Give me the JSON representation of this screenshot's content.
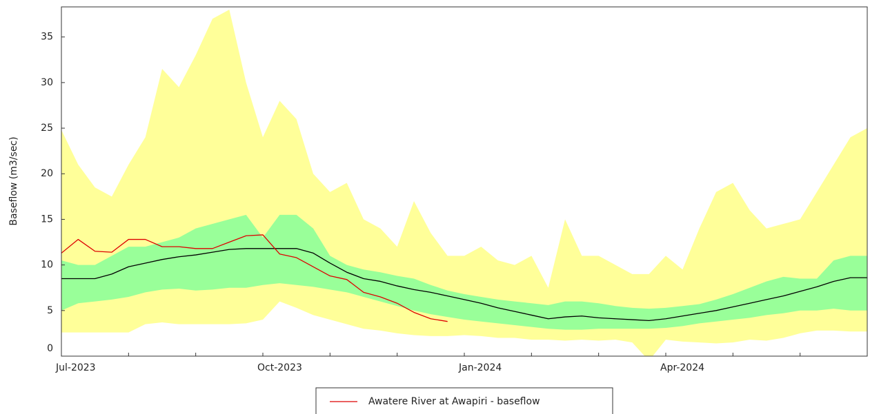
{
  "chart_data": {
    "type": "line",
    "y_label": "Baseflow (m3/sec)",
    "categories": [
      "Jul-2023",
      null,
      null,
      null,
      null,
      null,
      null,
      null,
      null,
      null,
      null,
      null,
      "Oct-2023",
      null,
      null,
      null,
      null,
      null,
      null,
      null,
      null,
      null,
      null,
      null,
      "Jan-2024",
      null,
      null,
      null,
      null,
      null,
      null,
      null,
      null,
      null,
      null,
      null,
      "Apr-2024",
      null,
      null,
      null,
      null,
      null,
      null,
      null,
      null,
      null,
      null,
      null,
      null
    ],
    "ylim": [
      0,
      38.3
    ],
    "yticks": [
      0,
      5,
      10,
      15,
      20,
      25,
      30,
      35
    ],
    "bands": [
      {
        "color": "#ffff99",
        "upper": [
          24.8,
          21,
          18.5,
          17.5,
          21,
          24,
          31.5,
          29.5,
          33,
          37,
          38,
          30,
          24,
          28,
          26,
          20,
          18,
          19,
          15,
          14,
          12,
          17,
          13.5,
          11,
          11,
          12,
          10.5,
          10,
          11,
          7.5,
          15,
          11,
          11,
          10,
          9,
          9,
          11,
          9.5,
          14,
          18,
          19,
          16,
          14,
          14.5,
          15,
          18,
          21,
          24,
          25
        ],
        "lower": [
          2.6,
          2.6,
          2.6,
          2.6,
          2.6,
          3.5,
          3.7,
          3.5,
          3.5,
          3.5,
          3.5,
          3.6,
          4,
          6,
          5.3,
          4.5,
          4,
          3.5,
          3,
          2.8,
          2.5,
          2.3,
          2.2,
          2.2,
          2.3,
          2.2,
          2,
          2,
          1.8,
          1.8,
          1.7,
          1.8,
          1.7,
          1.8,
          1.5,
          -0.5,
          1.8,
          1.6,
          1.5,
          1.4,
          1.5,
          1.8,
          1.7,
          2,
          2.5,
          2.8,
          2.8,
          2.7,
          2.7
        ]
      },
      {
        "color": "#99ff99",
        "upper": [
          10.5,
          10,
          10,
          11,
          12,
          12,
          12.5,
          13,
          14,
          14.5,
          15,
          15.5,
          13,
          15.5,
          15.5,
          14,
          11,
          10,
          9.5,
          9.2,
          8.8,
          8.5,
          7.8,
          7.2,
          6.8,
          6.5,
          6.2,
          6,
          5.8,
          5.6,
          6,
          6,
          5.8,
          5.5,
          5.3,
          5.2,
          5.3,
          5.5,
          5.7,
          6.2,
          6.8,
          7.5,
          8.2,
          8.7,
          8.5,
          8.5,
          10.5,
          11,
          11
        ],
        "lower": [
          5,
          5.8,
          6,
          6.2,
          6.5,
          7,
          7.3,
          7.4,
          7.2,
          7.3,
          7.5,
          7.5,
          7.8,
          8,
          7.8,
          7.6,
          7.3,
          7,
          6.5,
          6,
          5.5,
          5,
          4.6,
          4.3,
          4,
          3.8,
          3.6,
          3.4,
          3.2,
          3,
          2.9,
          2.9,
          3,
          3,
          3,
          3,
          3.1,
          3.3,
          3.6,
          3.8,
          4,
          4.2,
          4.5,
          4.7,
          5,
          5,
          5.2,
          5,
          5
        ]
      }
    ],
    "series": [
      {
        "color": "#000000",
        "values": [
          8.5,
          8.5,
          8.5,
          9,
          9.8,
          10.2,
          10.6,
          10.9,
          11.1,
          11.4,
          11.7,
          11.8,
          11.8,
          11.8,
          11.8,
          11.3,
          10.2,
          9.2,
          8.5,
          8.2,
          7.7,
          7.3,
          7,
          6.6,
          6.2,
          5.8,
          5.3,
          4.9,
          4.5,
          4.1,
          4.3,
          4.4,
          4.2,
          4.1,
          4,
          3.9,
          4.1,
          4.4,
          4.7,
          5,
          5.4,
          5.8,
          6.2,
          6.6,
          7.1,
          7.6,
          8.2,
          8.6,
          8.6
        ]
      },
      {
        "name": "Awatere River at Awapiri - baseflow",
        "color": "#dd0000",
        "values": [
          11.3,
          12.8,
          11.5,
          11.4,
          12.8,
          12.8,
          12,
          12,
          11.8,
          11.8,
          12.5,
          13.2,
          13.3,
          11.2,
          10.8,
          9.8,
          8.8,
          8.4,
          7,
          6.5,
          5.8,
          4.8,
          4.1,
          3.8,
          null,
          null,
          null,
          null,
          null,
          null,
          null,
          null,
          null,
          null,
          null,
          null,
          null,
          null,
          null,
          null,
          null,
          null,
          null,
          null,
          null,
          null,
          null,
          null,
          null
        ]
      }
    ]
  }
}
